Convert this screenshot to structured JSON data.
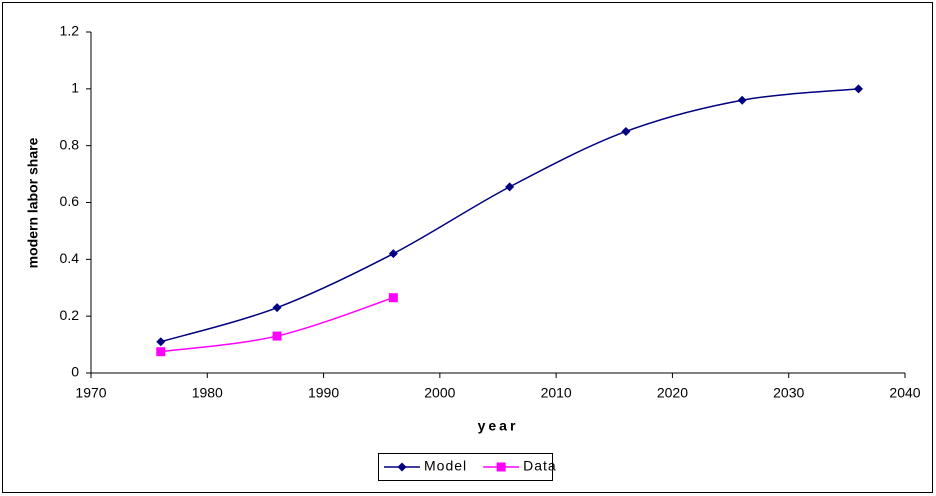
{
  "chart_data": {
    "type": "line",
    "x_label": "year",
    "y_label": "modern labor share",
    "x": [
      1976,
      1986,
      1996,
      2006,
      2016,
      2026,
      2036
    ],
    "series": [
      {
        "name": "Model",
        "color": "#000080",
        "marker": "diamond",
        "values": [
          0.11,
          0.23,
          0.42,
          0.655,
          0.85,
          0.96,
          1.0
        ]
      },
      {
        "name": "Data",
        "color": "#ff00ff",
        "marker": "square",
        "values": [
          0.075,
          0.13,
          0.265,
          null,
          null,
          null,
          null
        ]
      }
    ],
    "xlim": [
      1970,
      2040
    ],
    "xticks": [
      1970,
      1980,
      1990,
      2000,
      2010,
      2020,
      2030,
      2040
    ],
    "ylim": [
      0,
      1.2
    ],
    "yticks": [
      0,
      0.2,
      0.4,
      0.6,
      0.8,
      1,
      1.2
    ],
    "grid": false,
    "smooth": true,
    "legend": "bottom"
  }
}
